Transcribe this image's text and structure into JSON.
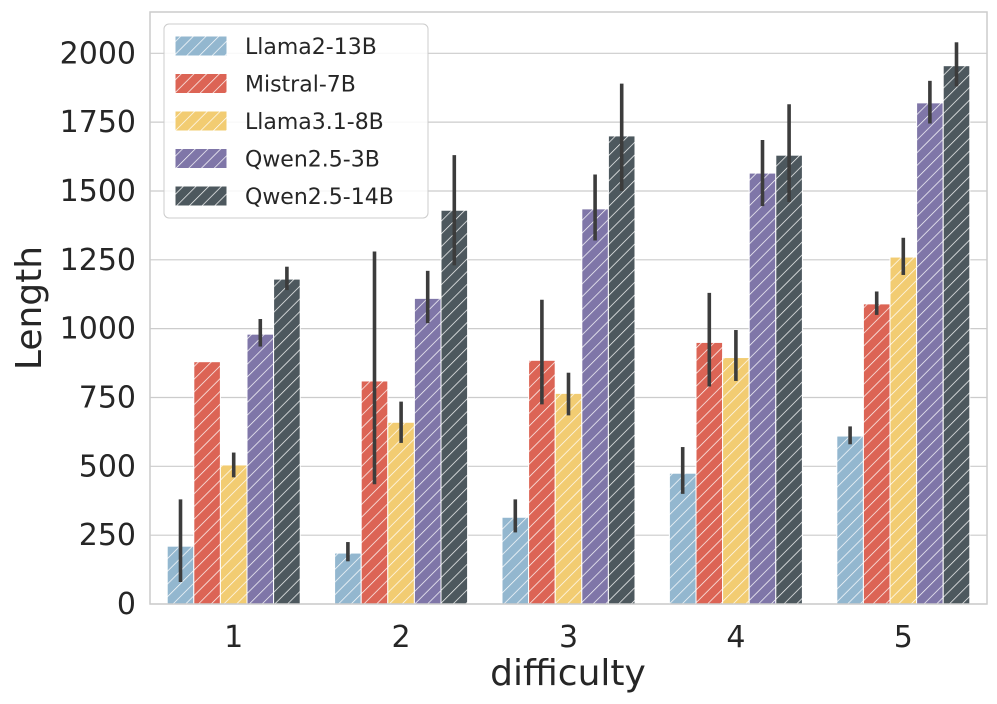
{
  "chart_data": {
    "type": "bar",
    "title": "",
    "xlabel": "difficulty",
    "ylabel": "Length",
    "categories": [
      "1",
      "2",
      "3",
      "4",
      "5"
    ],
    "ylim": [
      0,
      2150
    ],
    "yticks": [
      0,
      250,
      500,
      750,
      1000,
      1250,
      1500,
      1750,
      2000
    ],
    "grid": true,
    "legend_position": "top-left",
    "bar_pattern": "diagonal-hatch",
    "series": [
      {
        "name": "Llama2-13B",
        "color": "#93b7cf",
        "values": [
          210,
          185,
          315,
          475,
          610
        ],
        "error_low": [
          80,
          155,
          260,
          400,
          580
        ],
        "error_high": [
          380,
          225,
          380,
          570,
          645
        ]
      },
      {
        "name": "Mistral-7B",
        "color": "#dc6455",
        "values": [
          880,
          810,
          885,
          950,
          1090
        ],
        "error_low": [
          880,
          435,
          725,
          790,
          1050
        ],
        "error_high": [
          880,
          1280,
          1105,
          1130,
          1135
        ]
      },
      {
        "name": "Llama3.1-8B",
        "color": "#f2cc72",
        "values": [
          505,
          660,
          765,
          895,
          1260
        ],
        "error_low": [
          460,
          585,
          685,
          810,
          1195
        ],
        "error_high": [
          550,
          735,
          840,
          995,
          1330
        ]
      },
      {
        "name": "Qwen2.5-3B",
        "color": "#7f76a8",
        "values": [
          980,
          1110,
          1435,
          1565,
          1820
        ],
        "error_low": [
          935,
          1020,
          1320,
          1445,
          1745
        ],
        "error_high": [
          1035,
          1210,
          1560,
          1685,
          1900
        ]
      },
      {
        "name": "Qwen2.5-14B",
        "color": "#4d585e",
        "values": [
          1180,
          1430,
          1700,
          1630,
          1955
        ],
        "error_low": [
          1140,
          1230,
          1500,
          1460,
          1880
        ],
        "error_high": [
          1225,
          1630,
          1890,
          1815,
          2040
        ]
      }
    ]
  }
}
